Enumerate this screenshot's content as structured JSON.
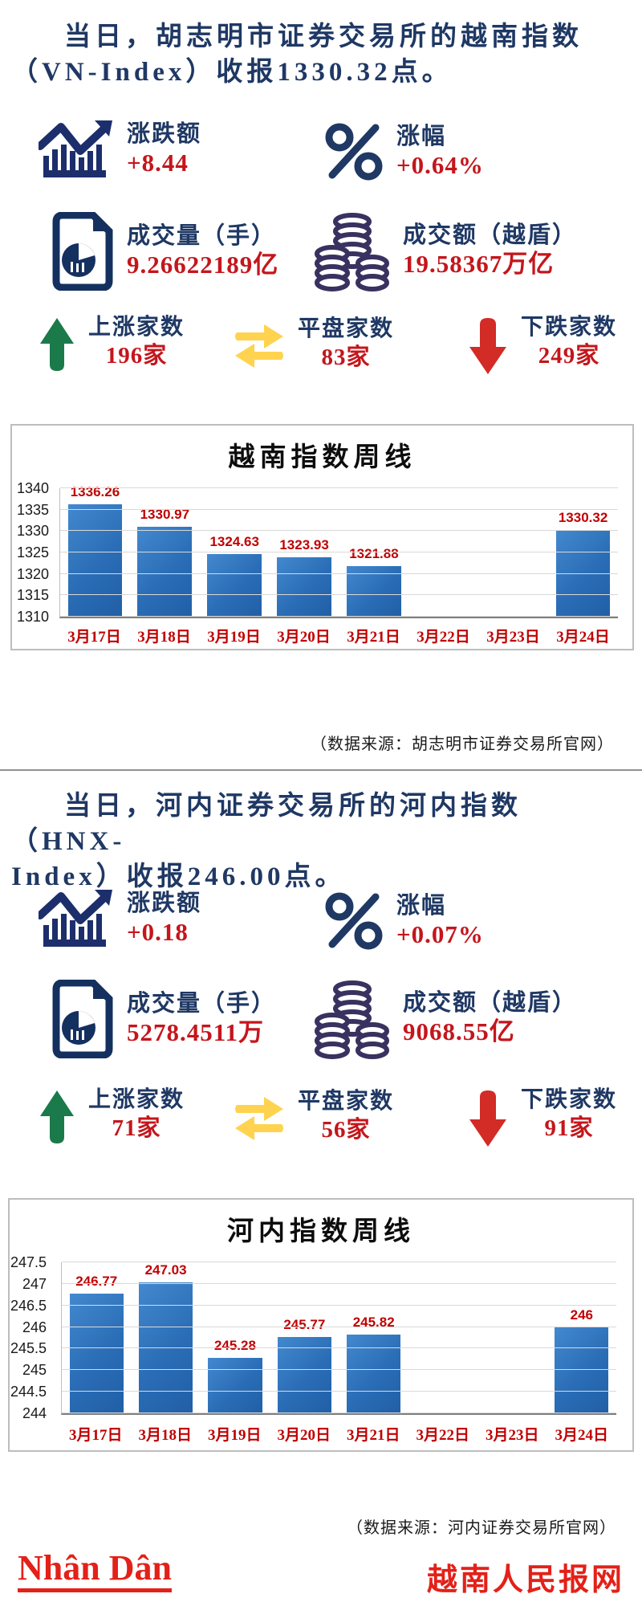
{
  "section_vn": {
    "title_line1": "当日，胡志明市证券交易所的越南指数",
    "title_line2": "（VN-Index）收报1330.32点。",
    "change": {
      "label": "涨跌额",
      "value": "+8.44"
    },
    "pct_change": {
      "label": "涨幅",
      "value": "+0.64%"
    },
    "volume": {
      "label": "成交量（手）",
      "value": "9.26622189亿"
    },
    "turnover": {
      "label": "成交额（越盾）",
      "value": "19.58367万亿"
    },
    "advancers": {
      "label": "上涨家数",
      "value": "196家"
    },
    "unchanged": {
      "label": "平盘家数",
      "value": "83家"
    },
    "decliners": {
      "label": "下跌家数",
      "value": "249家"
    },
    "source": "（数据来源：胡志明市证券交易所官网）"
  },
  "section_hnx": {
    "title_line1": "当日，河内证券交易所的河内指数（HNX-",
    "title_line2": "Index）收报246.00点。",
    "change": {
      "label": "涨跌额",
      "value": "+0.18"
    },
    "pct_change": {
      "label": "涨幅",
      "value": "+0.07%"
    },
    "volume": {
      "label": "成交量（手）",
      "value": "5278.4511万"
    },
    "turnover": {
      "label": "成交额（越盾）",
      "value": "9068.55亿"
    },
    "advancers": {
      "label": "上涨家数",
      "value": "71家"
    },
    "unchanged": {
      "label": "平盘家数",
      "value": "56家"
    },
    "decliners": {
      "label": "下跌家数",
      "value": "91家"
    },
    "source": "（数据来源：河内证券交易所官网）"
  },
  "footer": {
    "logo_text": "Nhân Dân",
    "site_name": "越南人民报网"
  },
  "colors": {
    "title_navy": "#1f3864",
    "value_red": "#c4161c",
    "chart_text_red": "#c00000",
    "bar_blue": "#2e74b9",
    "up_green": "#1a7a4a",
    "flat_yellow": "#ffd34f",
    "down_red": "#d32b25",
    "coin_indigo": "#39315f",
    "logo_red": "#e32119"
  },
  "chart_data": [
    {
      "id": "chart-vn",
      "type": "bar",
      "title": "越南指数周线",
      "categories": [
        "3月17日",
        "3月18日",
        "3月19日",
        "3月20日",
        "3月21日",
        "3月22日",
        "3月23日",
        "3月24日"
      ],
      "values": [
        1336.26,
        1330.97,
        1324.63,
        1323.93,
        1321.88,
        null,
        null,
        1330.32
      ],
      "labels": [
        "1336.26",
        "1330.97",
        "1324.63",
        "1323.93",
        "1321.88",
        "",
        "",
        "1330.32"
      ],
      "ylim": [
        1310,
        1340
      ],
      "yticks": [
        1340,
        1335,
        1330,
        1325,
        1320,
        1315,
        1310
      ],
      "grid": true,
      "legend": "none",
      "xlabel": "",
      "ylabel": ""
    },
    {
      "id": "chart-hnx",
      "type": "bar",
      "title": "河内指数周线",
      "categories": [
        "3月17日",
        "3月18日",
        "3月19日",
        "3月20日",
        "3月21日",
        "3月22日",
        "3月23日",
        "3月24日"
      ],
      "values": [
        246.77,
        247.03,
        245.28,
        245.77,
        245.82,
        null,
        null,
        246
      ],
      "labels": [
        "246.77",
        "247.03",
        "245.28",
        "245.77",
        "245.82",
        "",
        "",
        "246"
      ],
      "ylim": [
        244,
        247.5
      ],
      "yticks": [
        247.5,
        247,
        246.5,
        246,
        245.5,
        245,
        244.5,
        244
      ],
      "grid": true,
      "legend": "none",
      "xlabel": "",
      "ylabel": ""
    }
  ]
}
